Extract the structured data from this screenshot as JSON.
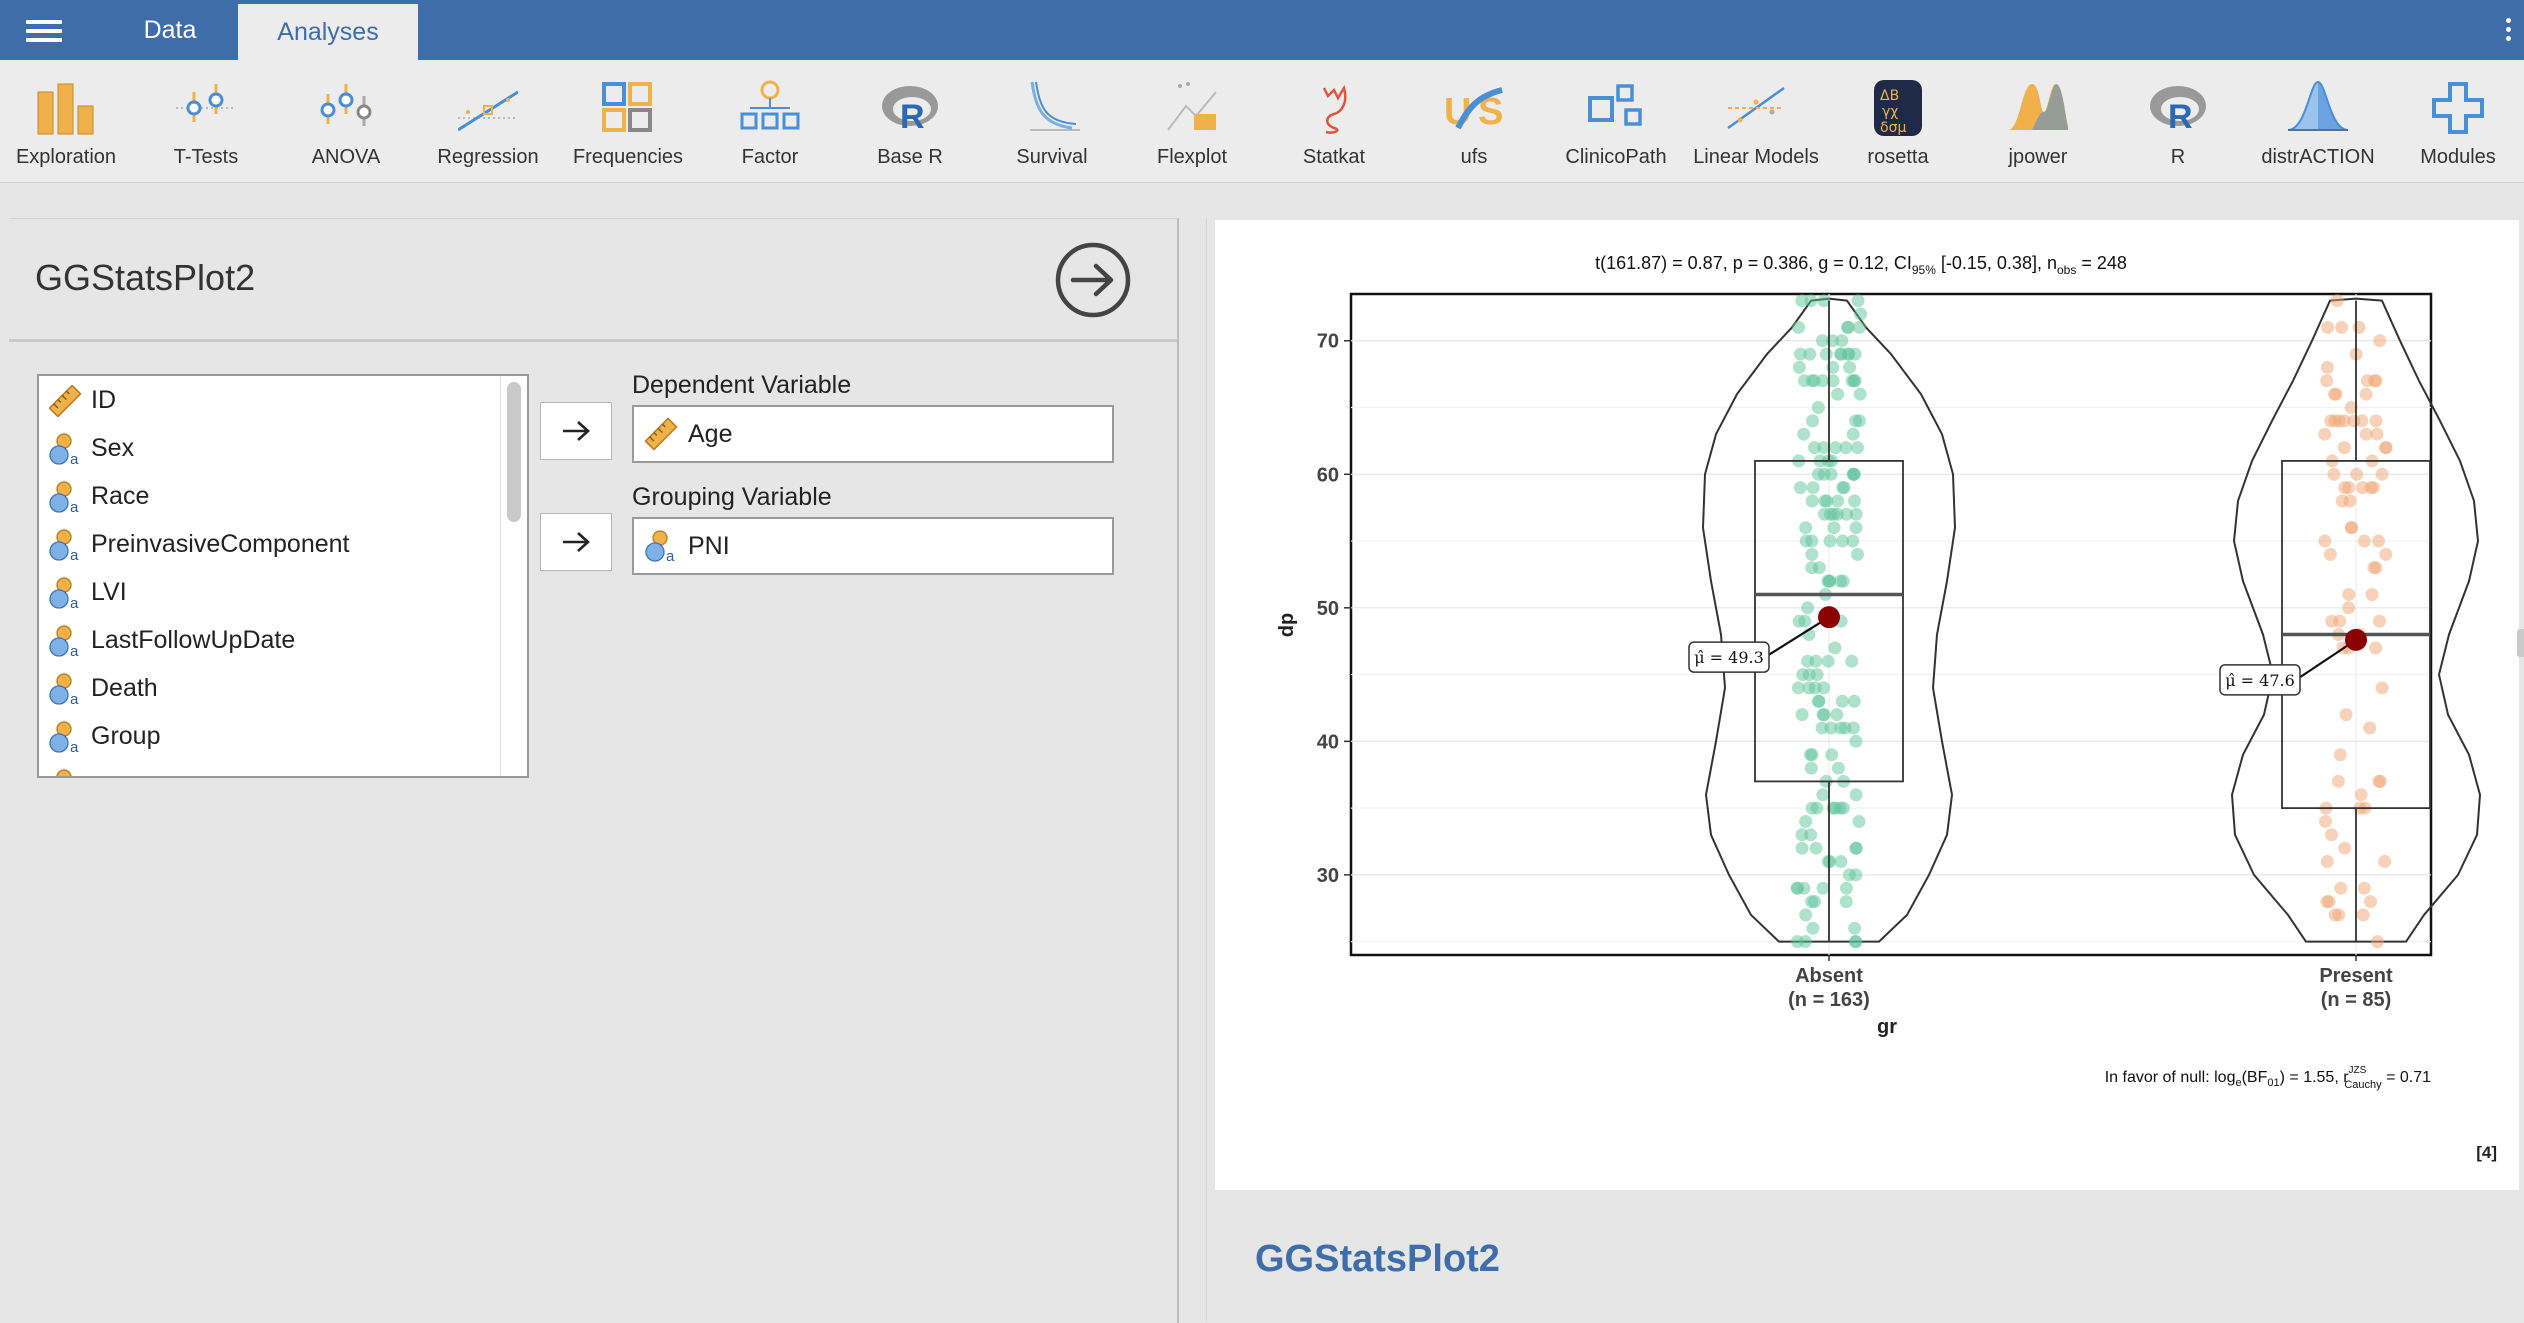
{
  "topbar": {
    "tabs": [
      {
        "label": "Data",
        "active": false
      },
      {
        "label": "Analyses",
        "active": true
      }
    ]
  },
  "ribbon": {
    "items": [
      {
        "label": "Exploration",
        "icon": "exploration-icon"
      },
      {
        "label": "T-Tests",
        "icon": "t-tests-icon"
      },
      {
        "label": "ANOVA",
        "icon": "anova-icon"
      },
      {
        "label": "Regression",
        "icon": "regression-icon"
      },
      {
        "label": "Frequencies",
        "icon": "frequencies-icon"
      },
      {
        "label": "Factor",
        "icon": "factor-icon"
      },
      {
        "label": "Base R",
        "icon": "base-r-icon"
      },
      {
        "label": "Survival",
        "icon": "survival-icon"
      },
      {
        "label": "Flexplot",
        "icon": "flexplot-icon"
      },
      {
        "label": "Statkat",
        "icon": "statkat-icon"
      },
      {
        "label": "ufs",
        "icon": "ufs-icon"
      },
      {
        "label": "ClinicoPath",
        "icon": "clinicopath-icon"
      },
      {
        "label": "Linear Models",
        "icon": "linear-models-icon"
      },
      {
        "label": "rosetta",
        "icon": "rosetta-icon"
      },
      {
        "label": "jpower",
        "icon": "jpower-icon"
      },
      {
        "label": "R",
        "icon": "r-icon"
      },
      {
        "label": "distrACTION",
        "icon": "distraction-icon"
      },
      {
        "label": "Modules",
        "icon": "modules-icon"
      }
    ]
  },
  "analysis_panel": {
    "title": "GGStatsPlot2",
    "variables": [
      {
        "name": "ID",
        "type": "continuous"
      },
      {
        "name": "Sex",
        "type": "nominal"
      },
      {
        "name": "Race",
        "type": "nominal"
      },
      {
        "name": "PreinvasiveComponent",
        "type": "nominal"
      },
      {
        "name": "LVI",
        "type": "nominal"
      },
      {
        "name": "LastFollowUpDate",
        "type": "nominal"
      },
      {
        "name": "Death",
        "type": "nominal"
      },
      {
        "name": "Group",
        "type": "nominal"
      }
    ],
    "dependent": {
      "label": "Dependent Variable",
      "value": "Age"
    },
    "grouping": {
      "label": "Grouping Variable",
      "value": "PNI"
    }
  },
  "results": {
    "heading": "GGStatsPlot2",
    "ref": "[4]"
  },
  "colors": {
    "topbar": "#3e6da9",
    "absent": "#5fc4a0",
    "present": "#f0a574",
    "mean_point": "#8b0000",
    "heading": "#3e6da9"
  },
  "chart_data": {
    "type": "violin-box-scatter",
    "subtitle_parts": {
      "stat": "t(161.87) = 0.87, p = 0.386, ",
      "effect": "g",
      "effect_rest": " = 0.12, CI",
      "ci_sub": "95%",
      "ci": " [-0.15, 0.38], n",
      "n_sub": "obs",
      "n": " = 248"
    },
    "caption_parts": {
      "pre": "In favor of null: log",
      "sub_e": "e",
      "bf": "(BF",
      "sub_01": "01",
      "mid": ") = 1.55, r",
      "sup": "JZS",
      "sub_cauchy": "Cauchy",
      "post": " = 0.71"
    },
    "xlabel": "gr",
    "ylabel": "dp",
    "ylim": [
      24,
      73.5
    ],
    "yticks": [
      30,
      40,
      50,
      60,
      70
    ],
    "groups": [
      {
        "name": "Absent",
        "n_label": "(n = 163)",
        "mean": 49.3,
        "mean_label": "μ̂ = 49.3",
        "box": {
          "q1": 37,
          "median": 51,
          "q3": 61,
          "min": 25,
          "max": 73
        },
        "point_count": 163
      },
      {
        "name": "Present",
        "n_label": "(n = 85)",
        "mean": 47.6,
        "mean_label": "μ̂ = 47.6",
        "box": {
          "q1": 35,
          "median": 48,
          "q3": 61,
          "min": 25,
          "max": 73
        },
        "point_count": 85
      }
    ]
  }
}
